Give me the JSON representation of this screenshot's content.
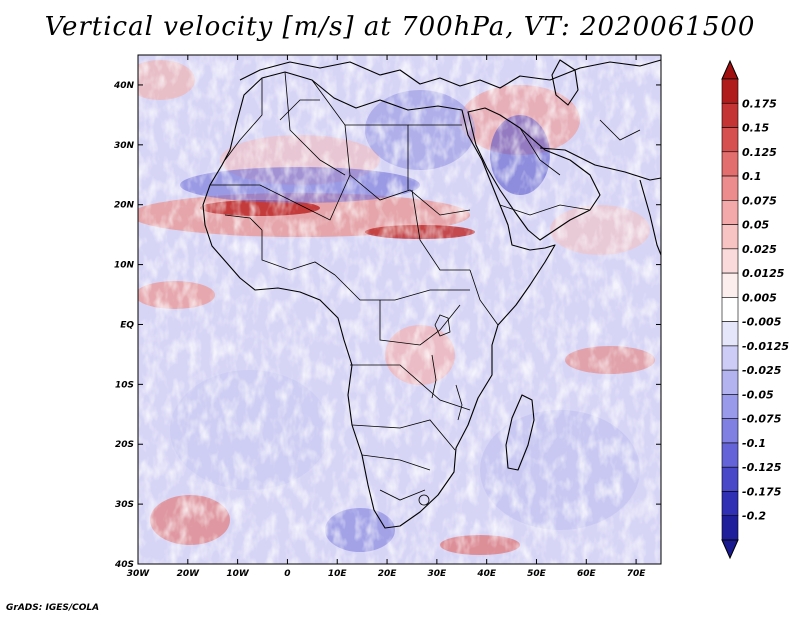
{
  "title": "Vertical velocity [m/s] at 700hPa, VT: 2020061500",
  "credit": "GrADS: IGES/COLA",
  "map": {
    "lat_labels": [
      "40N",
      "30N",
      "20N",
      "10N",
      "EQ",
      "10S",
      "20S",
      "30S",
      "40S"
    ],
    "lon_labels": [
      "30W",
      "20W",
      "10W",
      "0",
      "10E",
      "20E",
      "30E",
      "40E",
      "50E",
      "60E",
      "70E"
    ],
    "lat_range": [
      -40,
      45
    ],
    "lon_range": [
      -30,
      75
    ]
  },
  "colorbar": {
    "levels": [
      "0.175",
      "0.15",
      "0.125",
      "0.1",
      "0.075",
      "0.05",
      "0.025",
      "0.0125",
      "0.005",
      "-0.005",
      "-0.0125",
      "-0.025",
      "-0.05",
      "-0.075",
      "-0.1",
      "-0.125",
      "-0.175",
      "-0.2"
    ],
    "colors": [
      "#b01c1c",
      "#c43434",
      "#d65050",
      "#e26e6e",
      "#ec8c8c",
      "#f3a9a9",
      "#f7c3c3",
      "#fadada",
      "#fdeeee",
      "#ffffff",
      "#e6e6fb",
      "#ccccf6",
      "#b3b3f0",
      "#9a9aea",
      "#8080e2",
      "#6464d8",
      "#4848c8",
      "#3030b4",
      "#1f1f9c"
    ],
    "top_arrow_color": "#a01010",
    "bottom_arrow_color": "#1a1a90"
  }
}
